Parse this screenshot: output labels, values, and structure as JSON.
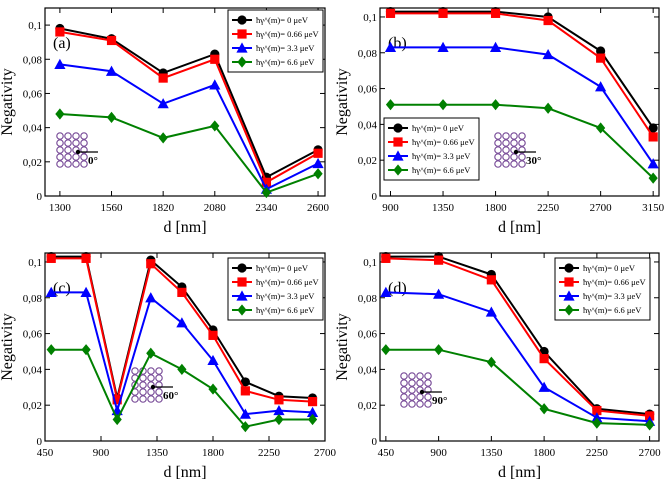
{
  "chart_data": [
    {
      "type": "line",
      "panel_label": "(a)",
      "xlabel": "d [nm]",
      "ylabel": "Negativity",
      "x": [
        1300,
        1560,
        1820,
        2080,
        2340,
        2600
      ],
      "xticks": [
        1300,
        1560,
        1820,
        2080,
        2340,
        2600
      ],
      "xticklabels": [
        "1300",
        "1560",
        "1820",
        "2080",
        "2340",
        "2600"
      ],
      "xlim": [
        1225,
        2635
      ],
      "ylim": [
        0,
        0.11
      ],
      "yticks": [
        0,
        0.02,
        0.04,
        0.06,
        0.08,
        0.1
      ],
      "yticklabels": [
        "0",
        "0,02",
        "0,04",
        "0,06",
        "0,08",
        "0,1"
      ],
      "series": [
        {
          "name": "ħγ^(m)= 0 μeV",
          "color": "#000000",
          "marker": "circle",
          "values": [
            0.098,
            0.092,
            0.072,
            0.083,
            0.011,
            0.027
          ]
        },
        {
          "name": "ħγ^(m)= 0.66 μeV",
          "color": "#ff0000",
          "marker": "square",
          "values": [
            0.096,
            0.091,
            0.069,
            0.08,
            0.008,
            0.025
          ]
        },
        {
          "name": "ħγ^(m)= 3.3 μeV",
          "color": "#0000ff",
          "marker": "triangle",
          "values": [
            0.077,
            0.073,
            0.054,
            0.065,
            0.004,
            0.019
          ]
        },
        {
          "name": "ħγ^(m)= 6.6 μeV",
          "color": "#008000",
          "marker": "diamond",
          "values": [
            0.048,
            0.046,
            0.034,
            0.041,
            0.002,
            0.013
          ]
        }
      ],
      "legend_position": "top-right",
      "inset": {
        "angle_label": "0°",
        "shape": "chain"
      }
    },
    {
      "type": "line",
      "panel_label": "(b)",
      "xlabel": "d [nm]",
      "ylabel": "Negativity",
      "x": [
        900,
        1350,
        1800,
        2250,
        2700,
        3150
      ],
      "xticks": [
        900,
        1350,
        1800,
        2250,
        2700,
        3150
      ],
      "xticklabels": [
        "900",
        "1350",
        "1800",
        "2250",
        "2700",
        "3150"
      ],
      "xlim": [
        810,
        3200
      ],
      "ylim": [
        0,
        0.105
      ],
      "yticks": [
        0,
        0.02,
        0.04,
        0.06,
        0.08,
        0.1
      ],
      "yticklabels": [
        "0",
        "0,02",
        "0,04",
        "0,06",
        "0,08",
        "0,1"
      ],
      "series": [
        {
          "name": "ħγ^(m)= 0 μeV",
          "color": "#000000",
          "marker": "circle",
          "values": [
            0.103,
            0.103,
            0.103,
            0.1,
            0.081,
            0.038
          ]
        },
        {
          "name": "ħγ^(m)= 0.66 μeV",
          "color": "#ff0000",
          "marker": "square",
          "values": [
            0.102,
            0.102,
            0.102,
            0.098,
            0.077,
            0.033
          ]
        },
        {
          "name": "ħγ^(m)= 3.3 μeV",
          "color": "#0000ff",
          "marker": "triangle",
          "values": [
            0.083,
            0.083,
            0.083,
            0.079,
            0.061,
            0.018
          ]
        },
        {
          "name": "ħγ^(m)= 6.6 μeV",
          "color": "#008000",
          "marker": "diamond",
          "values": [
            0.051,
            0.051,
            0.051,
            0.049,
            0.038,
            0.01
          ]
        }
      ],
      "legend_position": "bottom-left",
      "inset": {
        "angle_label": "30°",
        "shape": "diagonal"
      }
    },
    {
      "type": "line",
      "panel_label": "(c)",
      "xlabel": "d [nm]",
      "ylabel": "Negativity",
      "x": [
        500,
        780,
        1030,
        1300,
        1550,
        1800,
        2060,
        2330,
        2600
      ],
      "xticks": [
        450,
        900,
        1350,
        1800,
        2250,
        2700
      ],
      "xticklabels": [
        "450",
        "900",
        "1350",
        "1800",
        "2250",
        "2700"
      ],
      "xlim": [
        450,
        2700
      ],
      "ylim": [
        0,
        0.105
      ],
      "yticks": [
        0,
        0.02,
        0.04,
        0.06,
        0.08,
        0.1
      ],
      "yticklabels": [
        "0",
        "0,02",
        "0,04",
        "0,06",
        "0,08",
        "0,1"
      ],
      "series": [
        {
          "name": "ħγ^(m)= 0 μeV",
          "color": "#000000",
          "marker": "circle",
          "values": [
            0.103,
            0.103,
            0.024,
            0.101,
            0.086,
            0.062,
            0.033,
            0.025,
            0.024
          ]
        },
        {
          "name": "ħγ^(m)= 0.66 μeV",
          "color": "#ff0000",
          "marker": "square",
          "values": [
            0.102,
            0.102,
            0.023,
            0.099,
            0.083,
            0.059,
            0.028,
            0.023,
            0.022
          ]
        },
        {
          "name": "ħγ^(m)= 3.3 μeV",
          "color": "#0000ff",
          "marker": "triangle",
          "values": [
            0.083,
            0.083,
            0.017,
            0.08,
            0.066,
            0.045,
            0.015,
            0.017,
            0.016
          ]
        },
        {
          "name": "ħγ^(m)= 6.6 μeV",
          "color": "#008000",
          "marker": "diamond",
          "values": [
            0.051,
            0.051,
            0.012,
            0.049,
            0.04,
            0.029,
            0.008,
            0.012,
            0.012
          ]
        }
      ],
      "legend_position": "top-right",
      "inset": {
        "angle_label": "60°",
        "shape": "triangle"
      }
    },
    {
      "type": "line",
      "panel_label": "(d)",
      "xlabel": "d [nm]",
      "ylabel": "Negativity",
      "x": [
        450,
        900,
        1350,
        1800,
        2250,
        2700
      ],
      "xticks": [
        450,
        900,
        1350,
        1800,
        2250,
        2700
      ],
      "xticklabels": [
        "450",
        "900",
        "1350",
        "1800",
        "2250",
        "2700"
      ],
      "xlim": [
        400,
        2780
      ],
      "ylim": [
        0,
        0.105
      ],
      "yticks": [
        0,
        0.02,
        0.04,
        0.06,
        0.08,
        0.1
      ],
      "yticklabels": [
        "0",
        "0,02",
        "0,04",
        "0,06",
        "0,08",
        "0,1"
      ],
      "series": [
        {
          "name": "ħγ^(m)= 0 μeV",
          "color": "#000000",
          "marker": "circle",
          "values": [
            0.103,
            0.103,
            0.093,
            0.05,
            0.018,
            0.015
          ]
        },
        {
          "name": "ħγ^(m)= 0.66 μeV",
          "color": "#ff0000",
          "marker": "square",
          "values": [
            0.102,
            0.101,
            0.09,
            0.046,
            0.017,
            0.014
          ]
        },
        {
          "name": "ħγ^(m)= 3.3 μeV",
          "color": "#0000ff",
          "marker": "triangle",
          "values": [
            0.083,
            0.082,
            0.072,
            0.03,
            0.013,
            0.011
          ]
        },
        {
          "name": "ħγ^(m)= 6.6 μeV",
          "color": "#008000",
          "marker": "diamond",
          "values": [
            0.051,
            0.051,
            0.044,
            0.018,
            0.01,
            0.009
          ]
        }
      ],
      "legend_position": "top-right",
      "inset": {
        "angle_label": "90°",
        "shape": "grid"
      }
    }
  ]
}
